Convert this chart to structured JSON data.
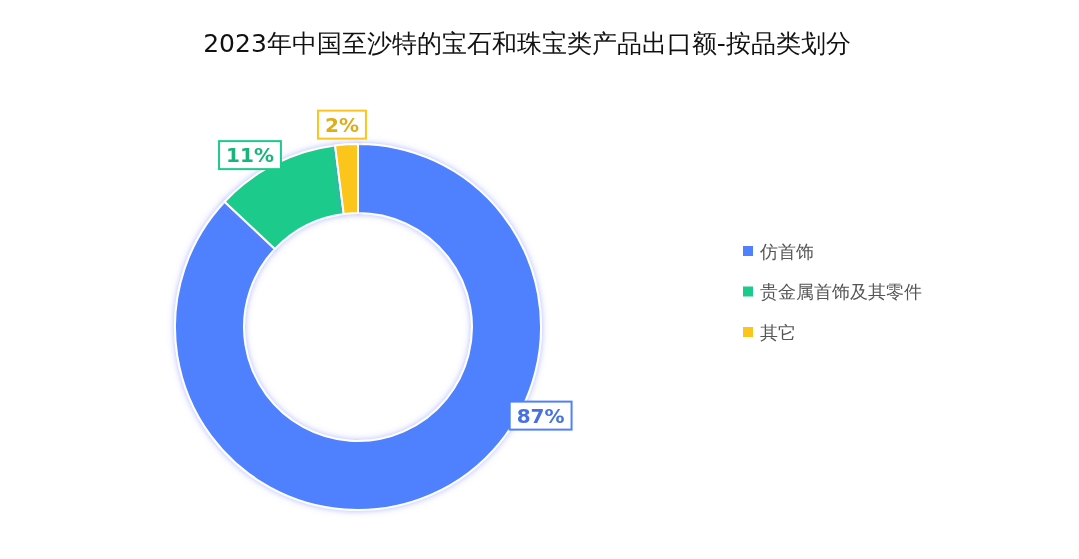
{
  "chart_data": {
    "type": "donut",
    "title": "2023年中国至沙特的宝石和珠宝类产品出口额-按品类划分",
    "categories": [
      "仿首饰",
      "贵金属首饰及其零件",
      "其它"
    ],
    "values": [
      87,
      11,
      2
    ],
    "colors": [
      "#4f80fd",
      "#1ccb8b",
      "#fbc51b"
    ],
    "value_labels": [
      "87%",
      "11%",
      "2%"
    ],
    "legend": "right"
  }
}
